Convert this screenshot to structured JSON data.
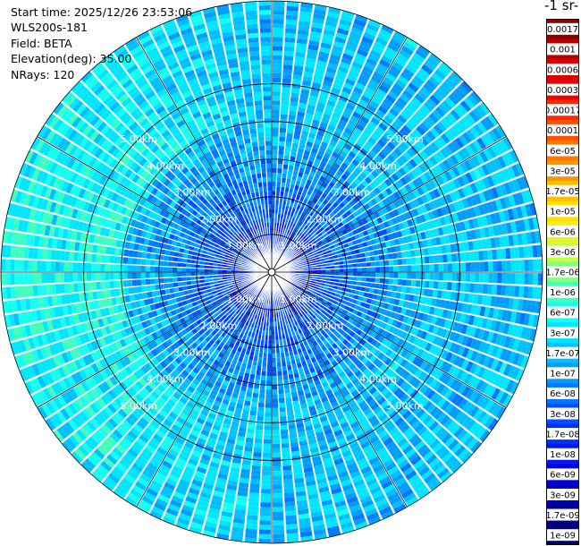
{
  "meta": {
    "start_time": "Start time: 2025/12/26 23:53:06",
    "instrument": "WLS200s-181",
    "field": "Field: BETA",
    "elevation": "Elevation(deg): 35.00",
    "nrays": "NRays: 120"
  },
  "chart_data": {
    "type": "heatmap",
    "projection": "polar",
    "title": "",
    "units_label": "-1 sr-",
    "n_rays": 120,
    "range_ring_labels": [
      "1.00km",
      "2.00km",
      "3.00km",
      "4.00km",
      "5.00km"
    ],
    "range_rings_km": [
      1,
      2,
      3,
      4,
      5
    ],
    "max_range_km": 7.2,
    "colorbar": {
      "tick_labels": [
        "0.0017",
        "0.001",
        "0.0006",
        "0.0003",
        "0.00017",
        "0.0001",
        "6e-05",
        "3e-05",
        "1.7e-05",
        "1e-05",
        "6e-06",
        "3e-06",
        "1.7e-06",
        "1e-06",
        "6e-07",
        "3e-07",
        "1.7e-07",
        "1e-07",
        "6e-08",
        "3e-08",
        "1.7e-08",
        "1e-08",
        "6e-09",
        "3e-09",
        "1.7e-09",
        "1e-09"
      ],
      "colors": [
        "#8c0000",
        "#b40000",
        "#d80000",
        "#f00000",
        "#ff2800",
        "#ff5000",
        "#ff7800",
        "#ff9600",
        "#ffbe00",
        "#ffe000",
        "#f0f020",
        "#c8ff3c",
        "#80ff80",
        "#40ffbf",
        "#14fff0",
        "#00e6ff",
        "#00c0ff",
        "#009cff",
        "#0078ff",
        "#0050ff",
        "#0032ff",
        "#0018f0",
        "#0000dc",
        "#0000b4",
        "#00008c",
        "#000064"
      ]
    },
    "field_levels": {
      "near_range": "3e-08",
      "mid_range": "1.7e-07",
      "far_range_west": "6e-07"
    }
  }
}
